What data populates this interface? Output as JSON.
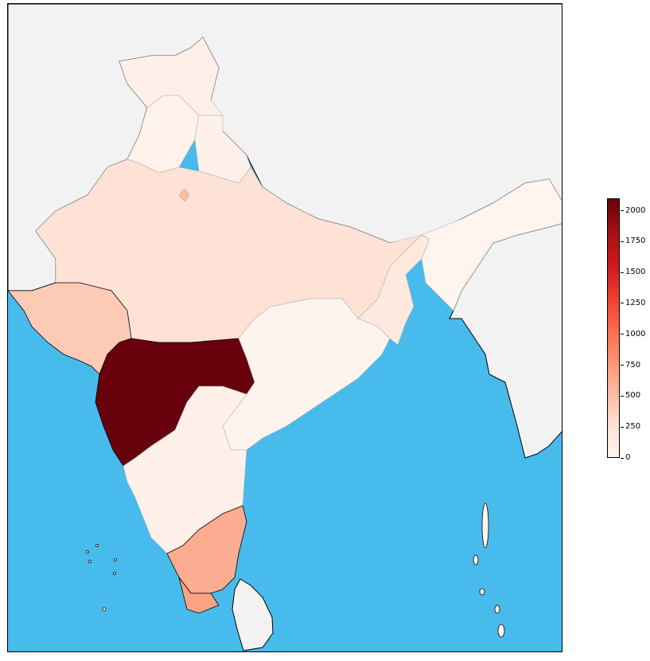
{
  "colors": {
    "ocean": "#48bbed",
    "land_outside": "#f2f2f2",
    "border": "#000000",
    "inner_border": "#b0b0b0",
    "scale_min": "#fff5f0",
    "scale_max": "#67000d"
  },
  "colorbar": {
    "min": 0,
    "max": 2100,
    "ticks": [
      "0",
      "250",
      "500",
      "750",
      "1000",
      "1250",
      "1500",
      "1750",
      "2000"
    ],
    "tick_values": [
      0,
      250,
      500,
      750,
      1000,
      1250,
      1500,
      1750,
      2000
    ]
  },
  "map": {
    "region_values": {
      "jammu-kashmir": 70,
      "himachal-punjab": 40,
      "uttarakhand": 50,
      "delhi": 520,
      "north-india": 240,
      "gujarat": 420,
      "maharashtra": 2090,
      "central-east": 20,
      "west-bengal": 150,
      "northeast": 15,
      "south-west": 60,
      "tamil-nadu": 620,
      "south-tip": 680
    }
  }
}
